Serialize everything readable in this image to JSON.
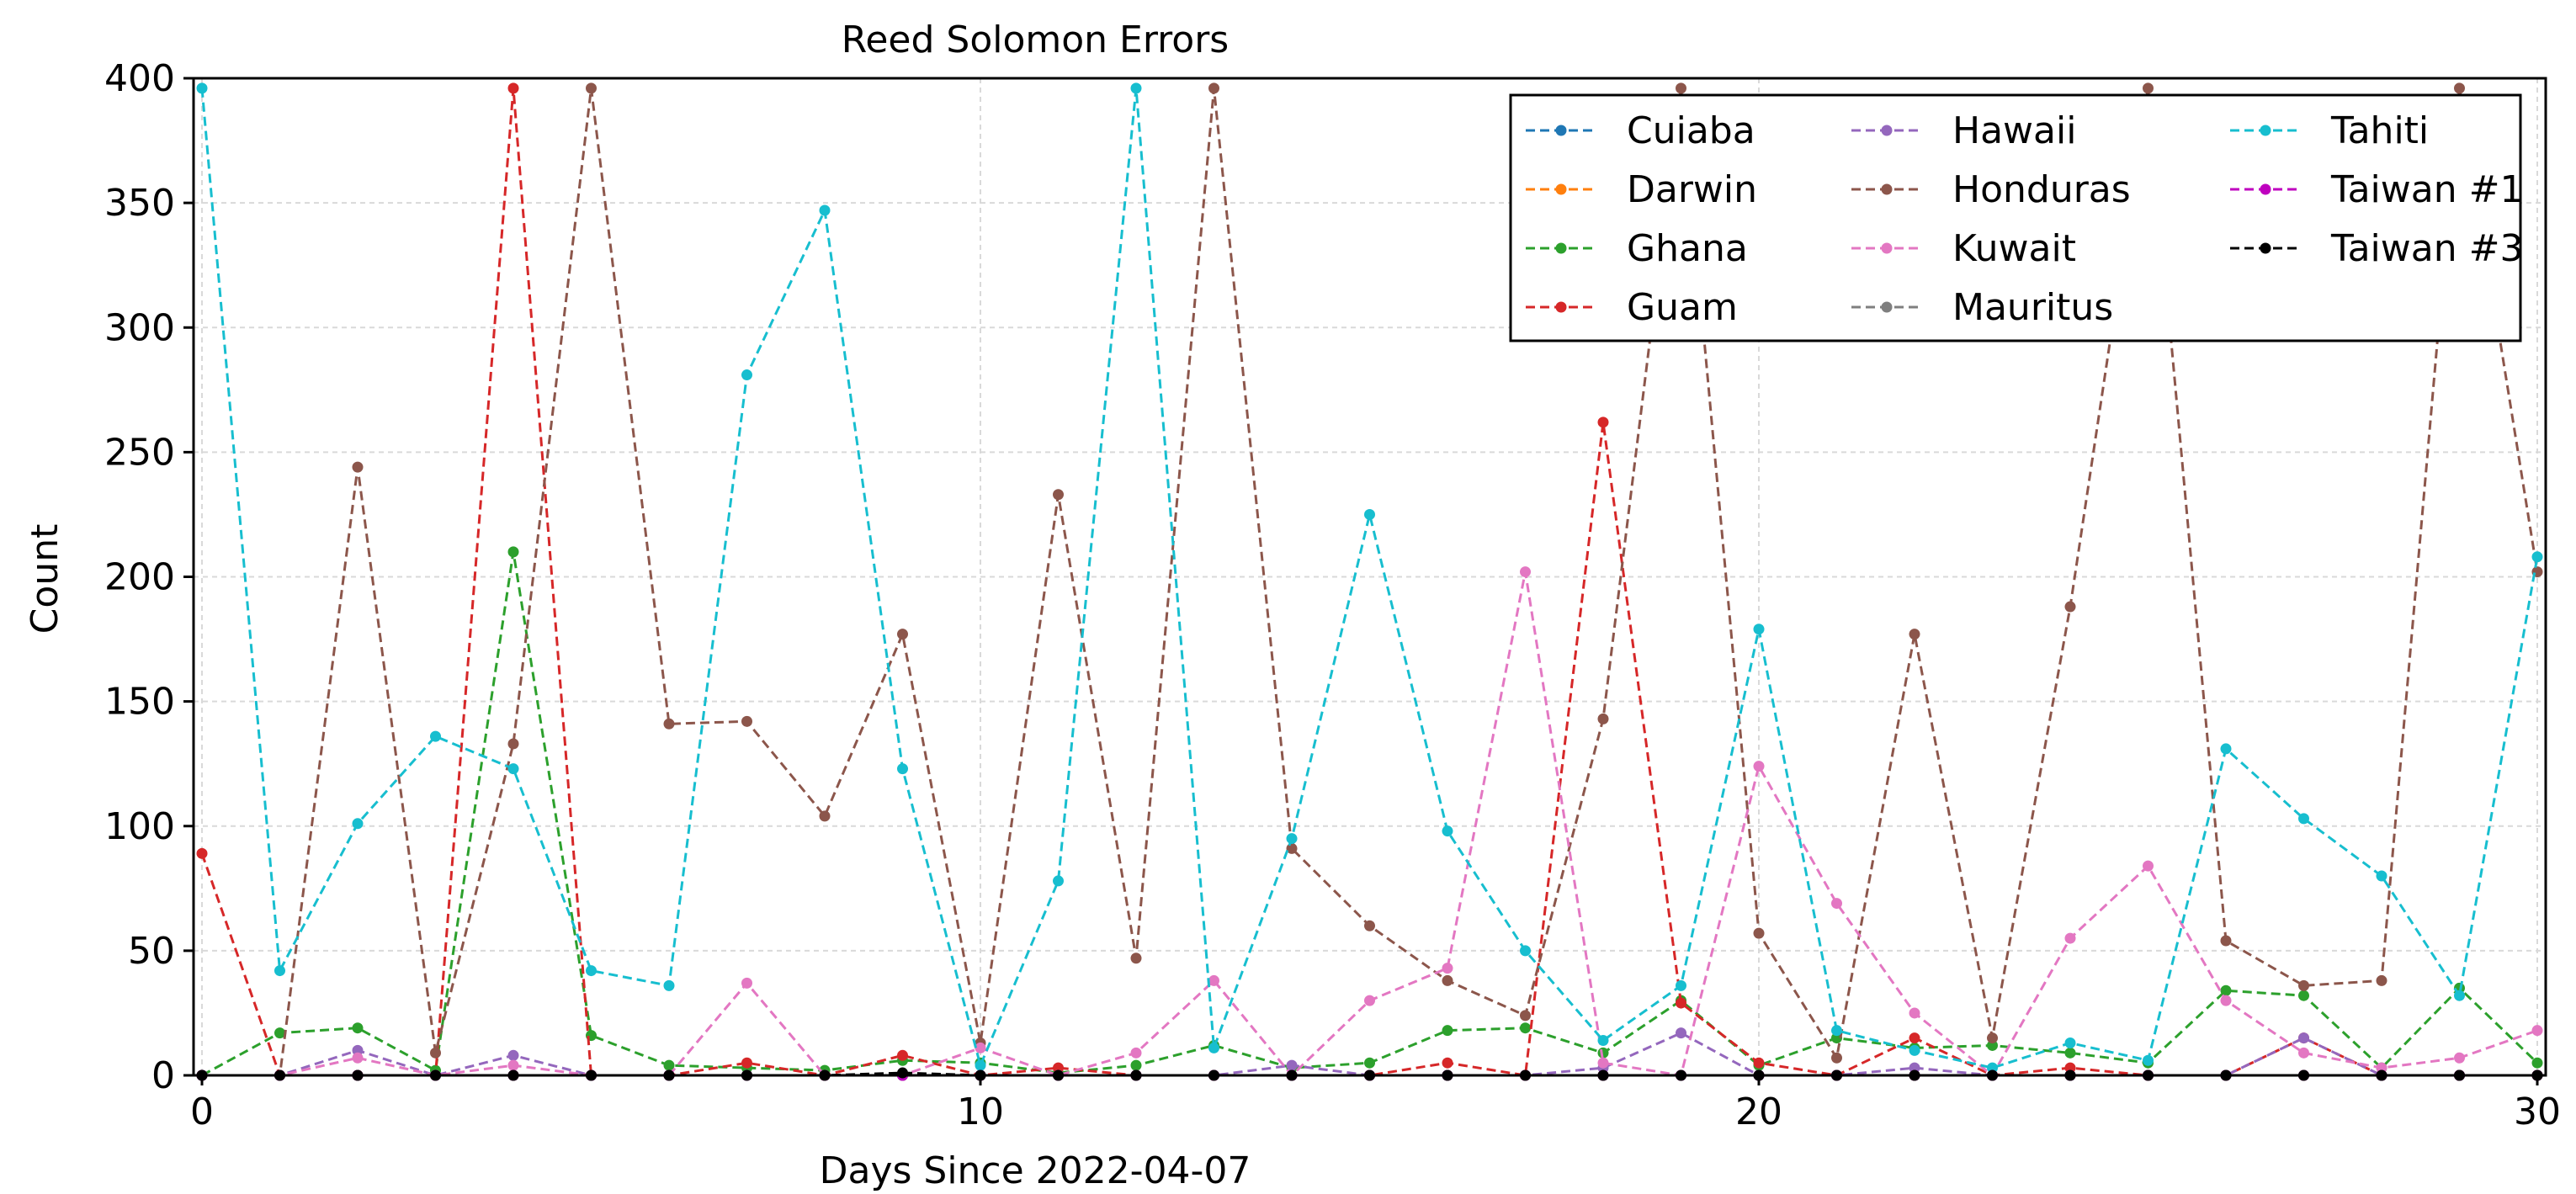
{
  "chart_data": {
    "type": "line",
    "title": "Reed Solomon Errors",
    "xlabel": "Days Since 2022-04-07",
    "ylabel": "Count",
    "xlim": [
      0,
      30
    ],
    "ylim": [
      0,
      400
    ],
    "xticks": [
      0,
      10,
      20,
      30
    ],
    "yticks": [
      0,
      50,
      100,
      150,
      200,
      250,
      300,
      350,
      400
    ],
    "grid": true,
    "line_style": "dashed",
    "legend_position": "top-right",
    "legend_columns": 3,
    "x": [
      0,
      1,
      2,
      3,
      4,
      5,
      6,
      7,
      8,
      9,
      10,
      11,
      12,
      13,
      14,
      15,
      16,
      17,
      18,
      19,
      20,
      21,
      22,
      23,
      24,
      25,
      26,
      27,
      28,
      29,
      30
    ],
    "series": [
      {
        "name": "Cuiaba",
        "color": "#1f77b4",
        "values": [
          0,
          0,
          0,
          0,
          0,
          0,
          0,
          0,
          0,
          0,
          0,
          0,
          0,
          0,
          0,
          0,
          0,
          0,
          0,
          0,
          0,
          0,
          0,
          0,
          0,
          0,
          0,
          0,
          0,
          0,
          0
        ]
      },
      {
        "name": "Darwin",
        "color": "#ff7f0e",
        "values": [
          0,
          0,
          0,
          0,
          0,
          0,
          0,
          0,
          0,
          0,
          0,
          0,
          0,
          0,
          0,
          0,
          0,
          0,
          0,
          0,
          0,
          0,
          0,
          0,
          0,
          0,
          0,
          0,
          0,
          0,
          0
        ]
      },
      {
        "name": "Ghana",
        "color": "#2ca02c",
        "values": [
          0,
          17,
          19,
          2,
          210,
          16,
          4,
          3,
          2,
          6,
          5,
          1,
          4,
          12,
          3,
          5,
          18,
          19,
          9,
          30,
          4,
          15,
          11,
          12,
          9,
          5,
          34,
          32,
          3,
          35,
          5
        ]
      },
      {
        "name": "Guam",
        "color": "#d62728",
        "values": [
          89,
          0,
          0,
          0,
          396,
          0,
          0,
          5,
          0,
          8,
          0,
          3,
          0,
          0,
          0,
          0,
          5,
          0,
          262,
          29,
          5,
          0,
          15,
          0,
          3,
          0,
          0,
          15,
          0,
          0,
          0
        ]
      },
      {
        "name": "Hawaii",
        "color": "#9467bd",
        "values": [
          0,
          0,
          10,
          0,
          8,
          0,
          0,
          0,
          0,
          0,
          0,
          0,
          0,
          0,
          4,
          0,
          0,
          0,
          3,
          17,
          0,
          0,
          3,
          0,
          0,
          0,
          0,
          15,
          0,
          0,
          0
        ]
      },
      {
        "name": "Honduras",
        "color": "#8c564b",
        "values": [
          0,
          0,
          244,
          9,
          133,
          396,
          141,
          142,
          104,
          177,
          13,
          233,
          47,
          396,
          91,
          60,
          38,
          24,
          143,
          396,
          57,
          7,
          177,
          15,
          188,
          396,
          54,
          36,
          38,
          396,
          202
        ]
      },
      {
        "name": "Kuwait",
        "color": "#e377c2",
        "values": [
          0,
          0,
          7,
          0,
          4,
          0,
          0,
          37,
          0,
          0,
          11,
          0,
          9,
          38,
          0,
          30,
          43,
          202,
          5,
          0,
          124,
          69,
          25,
          0,
          55,
          84,
          30,
          9,
          3,
          7,
          18
        ]
      },
      {
        "name": "Mauritus",
        "color": "#7f7f7f",
        "values": [
          0,
          0,
          0,
          0,
          0,
          0,
          0,
          0,
          0,
          0,
          0,
          0,
          0,
          0,
          0,
          0,
          0,
          0,
          0,
          0,
          0,
          0,
          0,
          0,
          0,
          0,
          0,
          0,
          0,
          0,
          0
        ]
      },
      {
        "name": "Tahiti",
        "color": "#17becf",
        "values": [
          396,
          42,
          101,
          136,
          123,
          42,
          36,
          281,
          347,
          123,
          4,
          78,
          396,
          11,
          95,
          225,
          98,
          50,
          14,
          36,
          179,
          18,
          10,
          3,
          13,
          6,
          131,
          103,
          80,
          32,
          208
        ]
      },
      {
        "name": "Taiwan #1",
        "color": "#bf00bf",
        "values": [
          0,
          0,
          0,
          0,
          0,
          0,
          0,
          0,
          0,
          0,
          0,
          0,
          0,
          0,
          0,
          0,
          0,
          0,
          0,
          0,
          0,
          0,
          0,
          0,
          0,
          0,
          0,
          0,
          0,
          0,
          0
        ]
      },
      {
        "name": "Taiwan #3",
        "color": "#000000",
        "values": [
          0,
          0,
          0,
          0,
          0,
          0,
          0,
          0,
          0,
          1,
          0,
          0,
          0,
          0,
          0,
          0,
          0,
          0,
          0,
          0,
          0,
          0,
          0,
          0,
          0,
          0,
          0,
          0,
          0,
          0,
          0
        ]
      }
    ]
  }
}
